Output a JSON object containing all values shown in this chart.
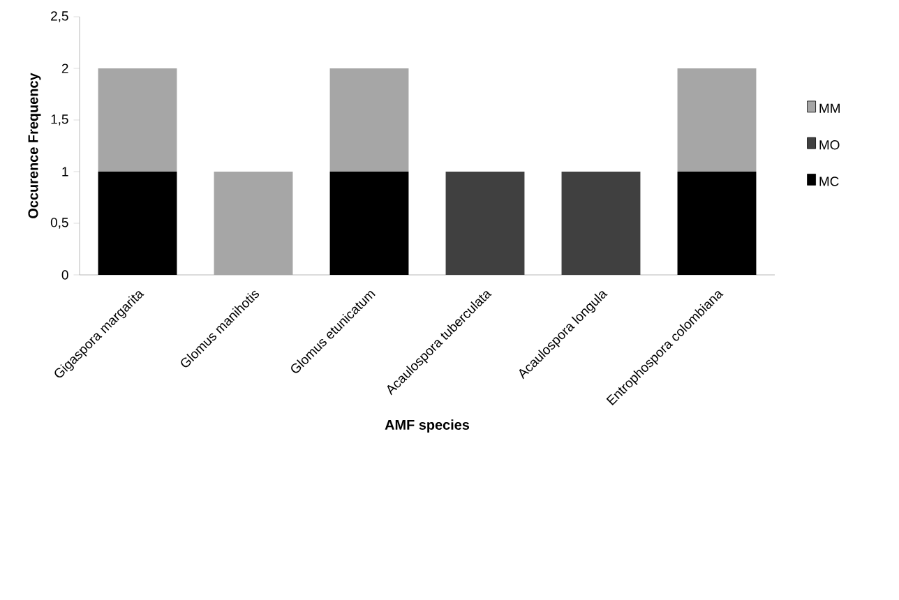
{
  "chart_data": {
    "type": "bar",
    "stacked": true,
    "xlabel": "AMF species",
    "ylabel": "Occurence Frequency",
    "categories": [
      "Gigaspora margarita",
      "Glomus manihotis",
      "Glomus etunicatum",
      "Acaulospora tuberculata",
      "Acaulospora longula",
      "Entrophospora colombiana"
    ],
    "series": [
      {
        "name": "MC",
        "color": "#000000",
        "values": [
          1,
          0,
          1,
          0,
          0,
          1
        ]
      },
      {
        "name": "MO",
        "color": "#404040",
        "values": [
          0,
          0,
          0,
          1,
          1,
          0
        ]
      },
      {
        "name": "MM",
        "color": "#a6a6a6",
        "values": [
          1,
          1,
          1,
          0,
          0,
          1
        ]
      }
    ],
    "ylim": [
      0,
      2.5
    ],
    "yticks": [
      0,
      {
        "value": 0.5,
        "label": "0,5"
      },
      1,
      {
        "value": 1.5,
        "label": "1,5"
      },
      2,
      {
        "value": 2.5,
        "label": "2,5"
      }
    ],
    "legend": "right",
    "grid": false
  }
}
